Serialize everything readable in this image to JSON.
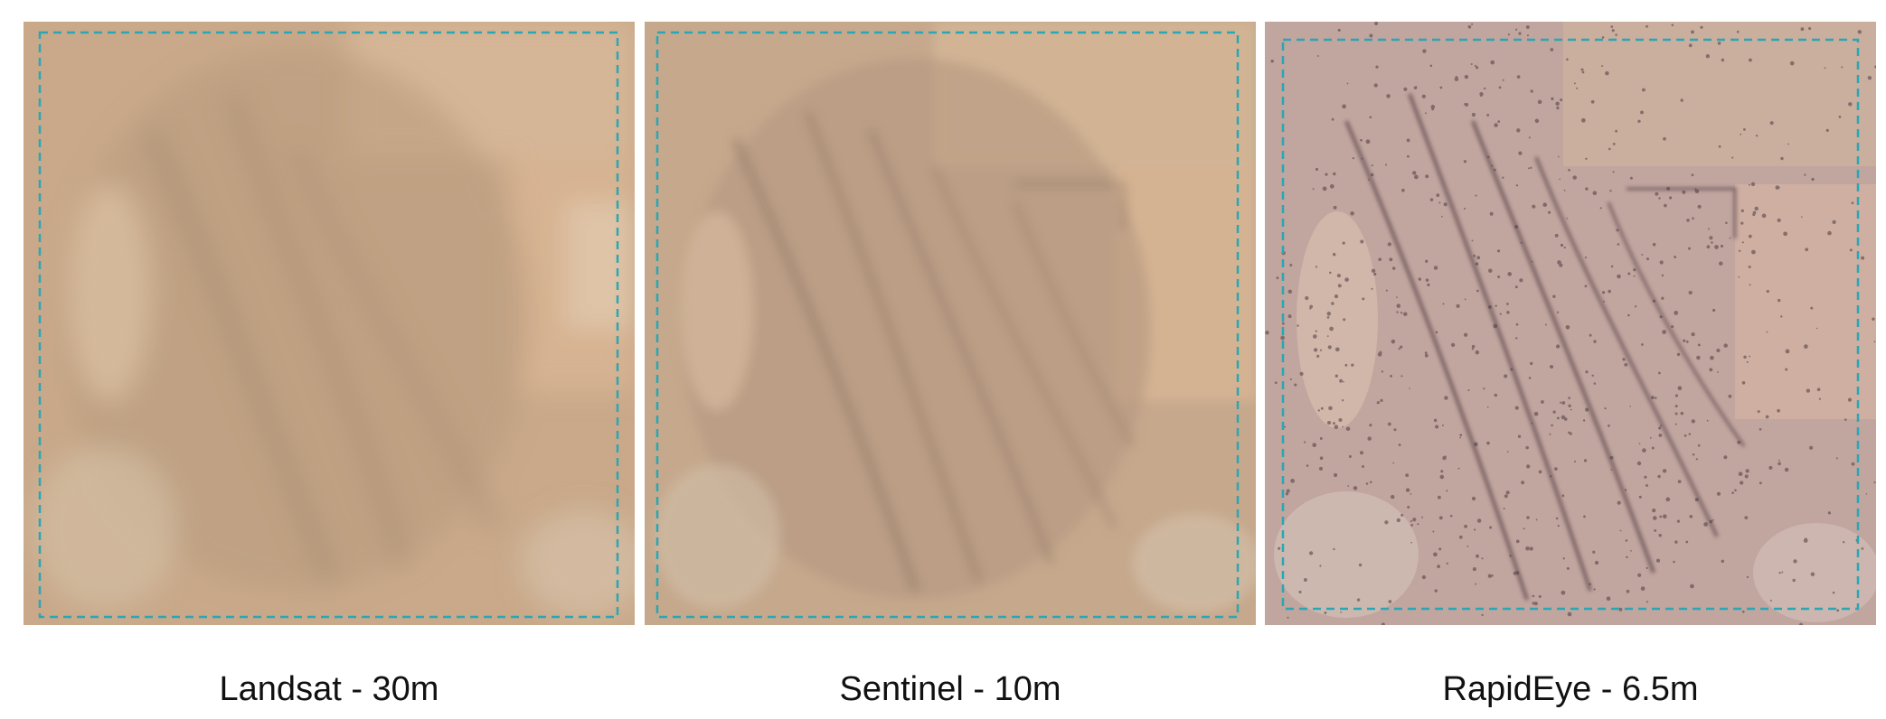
{
  "colors": {
    "boundary": "#2aa6b4",
    "landsat_base": "#c9a98a",
    "sentinel_base": "#c6a98d",
    "rapideye_base": "#c1a59f"
  },
  "panels": [
    {
      "key": "landsat",
      "label": "Landsat - 30m"
    },
    {
      "key": "sentinel",
      "label": "Sentinel - 10m"
    },
    {
      "key": "rapideye",
      "label": "RapidEye - 6.5m"
    }
  ]
}
